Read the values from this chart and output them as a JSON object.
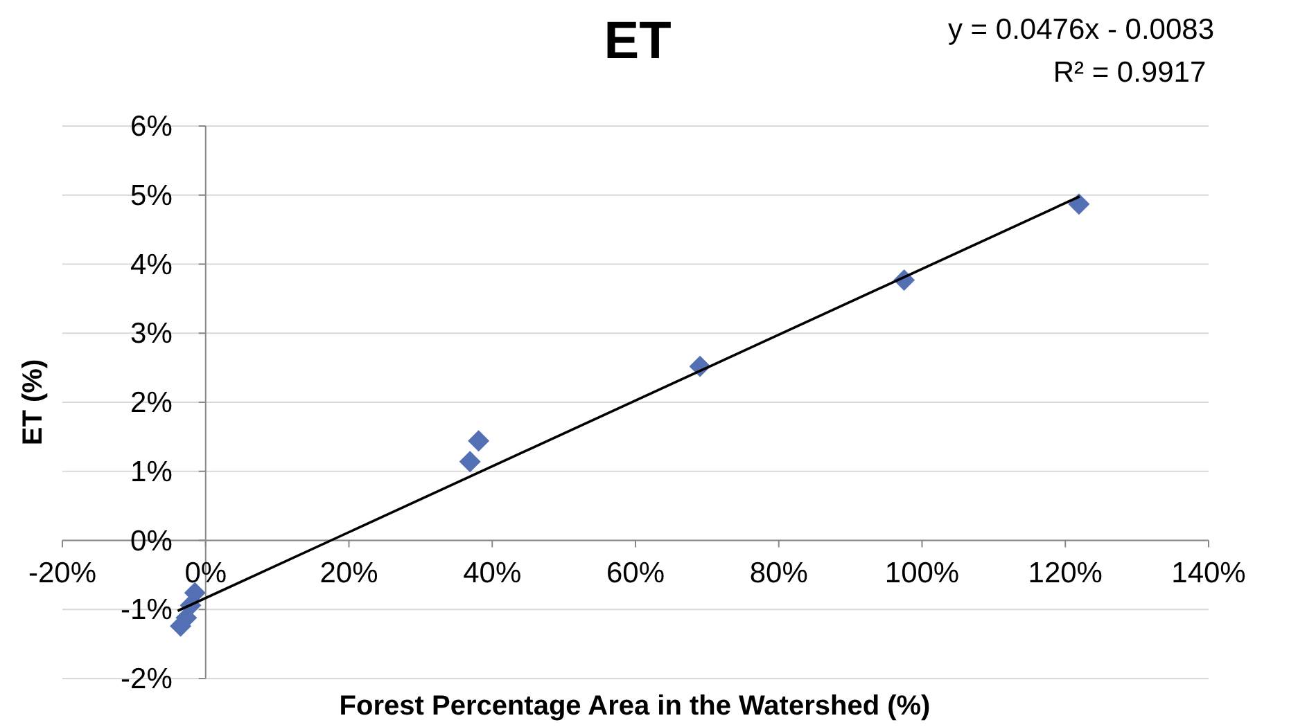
{
  "chart_data": {
    "type": "scatter",
    "title": "ET",
    "xlabel": "Forest Percentage Area in the Watershed (%)",
    "ylabel": "ET (%)",
    "annotations": [
      "y = 0.0476x - 0.0083",
      "R² = 0.9917"
    ],
    "xlim": [
      -0.2,
      1.4
    ],
    "xticks": [
      {
        "value": -0.2,
        "label": "-20%"
      },
      {
        "value": 0,
        "label": "0%"
      },
      {
        "value": 0.2,
        "label": "20%"
      },
      {
        "value": 0.4,
        "label": "40%"
      },
      {
        "value": 0.6,
        "label": "60%"
      },
      {
        "value": 0.8,
        "label": "80%"
      },
      {
        "value": 1.0,
        "label": "100%"
      },
      {
        "value": 1.2,
        "label": "120%"
      },
      {
        "value": 1.4,
        "label": "140%"
      }
    ],
    "ylim": [
      -0.02,
      0.06
    ],
    "yticks": [
      {
        "value": -0.02,
        "label": "-2%"
      },
      {
        "value": -0.01,
        "label": "-1%"
      },
      {
        "value": 0,
        "label": "0%"
      },
      {
        "value": 0.01,
        "label": "1%"
      },
      {
        "value": 0.02,
        "label": "2%"
      },
      {
        "value": 0.03,
        "label": "3%"
      },
      {
        "value": 0.04,
        "label": "4%"
      },
      {
        "value": 0.05,
        "label": "5%"
      },
      {
        "value": 0.06,
        "label": "6%"
      }
    ],
    "grid": "y",
    "series": [
      {
        "marker": "diamond",
        "color": "#5470b5",
        "x": [
          -0.015,
          -0.021,
          -0.027,
          -0.035,
          0.381,
          0.369,
          0.69,
          0.975,
          1.219
        ],
        "values": [
          -0.0076,
          -0.0094,
          -0.0112,
          -0.0124,
          0.0144,
          0.0114,
          0.0252,
          0.0377,
          0.0487
        ]
      },
      {
        "type": "line",
        "color": "#000000",
        "line_style": "solid",
        "x": [
          -0.039,
          1.22
        ],
        "values": [
          -0.0102,
          0.0498
        ]
      }
    ]
  }
}
